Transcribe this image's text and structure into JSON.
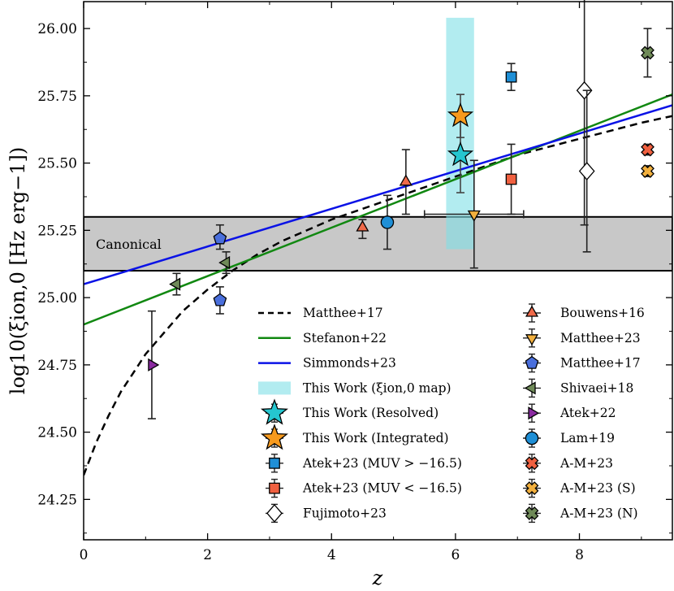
{
  "chart_data": {
    "type": "scatter",
    "xlabel": "z",
    "ylabel": "log10(ξion,0 [Hz erg−1])",
    "xlim": [
      0,
      9.5
    ],
    "ylim": [
      24.1,
      26.1
    ],
    "x_ticks": [
      0,
      2,
      4,
      6,
      8
    ],
    "x_tick_labels": [
      "0",
      "2",
      "4",
      "6",
      "8"
    ],
    "y_ticks": [
      24.25,
      24.5,
      24.75,
      25.0,
      25.25,
      25.5,
      25.75,
      26.0
    ],
    "y_tick_labels": [
      "24.25",
      "24.50",
      "24.75",
      "25.00",
      "25.25",
      "25.50",
      "25.75",
      "26.00"
    ],
    "grid": false,
    "legend_position": "lower-right",
    "canonical_band": {
      "label": "Canonical",
      "y_range": [
        25.1,
        25.3
      ],
      "color": "#c8c8c8"
    },
    "this_work_map_band": {
      "x_range": [
        5.85,
        6.3
      ],
      "y_range": [
        25.18,
        26.04
      ],
      "color": "#7fe0e6"
    },
    "lines": [
      {
        "name": "Matthee+17",
        "style": "dashed",
        "color": "#000000",
        "x": [
          0,
          0.2,
          0.4,
          0.6,
          0.8,
          1.0,
          1.3,
          1.6,
          2.0,
          2.4,
          2.8,
          3.2,
          3.6,
          4.0,
          4.5,
          5.0,
          5.5,
          6.0,
          6.5,
          7.0,
          7.5,
          8.0,
          8.5,
          9.0,
          9.5
        ],
        "y": [
          24.34,
          24.46,
          24.56,
          24.65,
          24.72,
          24.79,
          24.87,
          24.95,
          25.03,
          25.1,
          25.16,
          25.21,
          25.25,
          25.29,
          25.33,
          25.37,
          25.41,
          25.45,
          25.49,
          25.53,
          25.56,
          25.59,
          25.62,
          25.65,
          25.675
        ]
      },
      {
        "name": "Stefanon+22",
        "style": "solid",
        "color": "#118811",
        "x": [
          0,
          9.5
        ],
        "y": [
          24.9,
          25.755
        ]
      },
      {
        "name": "Simmonds+23",
        "style": "solid",
        "color": "#0a12e6",
        "x": [
          0,
          9.5
        ],
        "y": [
          25.05,
          25.715
        ]
      }
    ],
    "series": [
      {
        "name": "This Work (Resolved)",
        "marker": "star",
        "color": "#25c6cf",
        "x": [
          6.08
        ],
        "y": [
          25.53
        ],
        "yerr_low": [
          0.14
        ],
        "yerr_high": [
          0.14
        ],
        "xerr": [
          0
        ]
      },
      {
        "name": "This Work (Integrated)",
        "marker": "star",
        "color": "#f79a1e",
        "x": [
          6.08
        ],
        "y": [
          25.675
        ],
        "yerr_low": [
          0.08
        ],
        "yerr_high": [
          0.08
        ],
        "xerr": [
          0
        ]
      },
      {
        "name": "Atek+23 (MUV > −16.5)",
        "marker": "square",
        "color": "#1f8fd6",
        "x": [
          6.9
        ],
        "y": [
          25.82
        ],
        "yerr_low": [
          0.05
        ],
        "yerr_high": [
          0.05
        ],
        "xerr": [
          0
        ]
      },
      {
        "name": "Atek+23 (MUV < −16.5)",
        "marker": "square",
        "color": "#f06040",
        "x": [
          6.9
        ],
        "y": [
          25.44
        ],
        "yerr_low": [
          0.13
        ],
        "yerr_high": [
          0.13
        ],
        "xerr": [
          0
        ]
      },
      {
        "name": "Fujimoto+23",
        "marker": "diamond",
        "color": "#ffffff",
        "x": [
          8.08,
          8.12
        ],
        "y": [
          25.77,
          25.47
        ],
        "yerr_low": [
          0.5,
          0.3
        ],
        "yerr_high": [
          0.4,
          0.3
        ],
        "xerr": [
          0,
          0
        ]
      },
      {
        "name": "Bouwens+16",
        "marker": "triangle-up",
        "color": "#f06a4a",
        "x": [
          4.5,
          5.2
        ],
        "y": [
          25.26,
          25.43
        ],
        "yerr_low": [
          0.04,
          0.12
        ],
        "yerr_high": [
          0.03,
          0.12
        ],
        "xerr": [
          0,
          0
        ]
      },
      {
        "name": "Matthee+23",
        "marker": "triangle-down",
        "color": "#f2b03e",
        "x": [
          6.3
        ],
        "y": [
          25.31
        ],
        "yerr_low": [
          0.2
        ],
        "yerr_high": [
          0.2
        ],
        "xerr": [
          0.8
        ]
      },
      {
        "name": "Matthee+17",
        "marker": "pentagon",
        "color": "#4a6fdc",
        "x": [
          2.2,
          2.2
        ],
        "y": [
          25.22,
          24.99
        ],
        "yerr_low": [
          0.04,
          0.05
        ],
        "yerr_high": [
          0.05,
          0.05
        ],
        "xerr": [
          0,
          0
        ]
      },
      {
        "name": "Shivaei+18",
        "marker": "triangle-left",
        "color": "#6f8a58",
        "x": [
          1.5,
          2.3
        ],
        "y": [
          25.05,
          25.13
        ],
        "yerr_low": [
          0.04,
          0.04
        ],
        "yerr_high": [
          0.04,
          0.04
        ],
        "xerr": [
          0,
          0
        ]
      },
      {
        "name": "Atek+22",
        "marker": "triangle-right",
        "color": "#8a2aa0",
        "x": [
          1.1
        ],
        "y": [
          24.75
        ],
        "yerr_low": [
          0.2
        ],
        "yerr_high": [
          0.2
        ],
        "xerr": [
          0
        ]
      },
      {
        "name": "Lam+19",
        "marker": "circle",
        "color": "#1f8fd6",
        "x": [
          4.9
        ],
        "y": [
          25.28
        ],
        "yerr_low": [
          0.1
        ],
        "yerr_high": [
          0.1
        ],
        "xerr": [
          0
        ]
      },
      {
        "name": "A-M+23",
        "marker": "x-circle",
        "color": "#f06040",
        "x": [
          9.1
        ],
        "y": [
          25.55
        ],
        "yerr_low": [
          0.02
        ],
        "yerr_high": [
          0.02
        ],
        "xerr": [
          0
        ]
      },
      {
        "name": "A-M+23 (S)",
        "marker": "x-circle",
        "color": "#f2b03e",
        "x": [
          9.1
        ],
        "y": [
          25.47
        ],
        "yerr_low": [
          0.02
        ],
        "yerr_high": [
          0.02
        ],
        "xerr": [
          0
        ]
      },
      {
        "name": "A-M+23 (N)",
        "marker": "x-circle",
        "color": "#6f8a58",
        "x": [
          9.1
        ],
        "y": [
          25.91
        ],
        "yerr_low": [
          0.09
        ],
        "yerr_high": [
          0.09
        ],
        "xerr": [
          0
        ]
      }
    ],
    "legend_left": [
      {
        "label": "Matthee+17",
        "symbol": "dashed-line",
        "color": "#000000"
      },
      {
        "label": "Stefanon+22",
        "symbol": "line",
        "color": "#118811"
      },
      {
        "label": "Simmonds+23",
        "symbol": "line",
        "color": "#0a12e6"
      },
      {
        "label": "This Work (ξion,0 map)",
        "symbol": "patch",
        "color": "#7fe0e6"
      },
      {
        "label": "This Work (Resolved)",
        "symbol": "star",
        "color": "#25c6cf"
      },
      {
        "label": "This Work (Integrated)",
        "symbol": "star",
        "color": "#f79a1e"
      },
      {
        "label": "Atek+23 (MUV > −16.5)",
        "symbol": "square",
        "color": "#1f8fd6"
      },
      {
        "label": "Atek+23 (MUV < −16.5)",
        "symbol": "square",
        "color": "#f06040"
      },
      {
        "label": "Fujimoto+23",
        "symbol": "diamond",
        "color": "#ffffff"
      }
    ],
    "legend_right": [
      {
        "label": "Bouwens+16",
        "symbol": "triangle-up",
        "color": "#f06a4a"
      },
      {
        "label": "Matthee+23",
        "symbol": "triangle-down",
        "color": "#f2b03e"
      },
      {
        "label": "Matthee+17",
        "symbol": "pentagon",
        "color": "#4a6fdc"
      },
      {
        "label": "Shivaei+18",
        "symbol": "triangle-left",
        "color": "#6f8a58"
      },
      {
        "label": "Atek+22",
        "symbol": "triangle-right",
        "color": "#8a2aa0"
      },
      {
        "label": "Lam+19",
        "symbol": "circle",
        "color": "#1f8fd6"
      },
      {
        "label": "A-M+23",
        "symbol": "x-circle",
        "color": "#f06040"
      },
      {
        "label": "A-M+23 (S)",
        "symbol": "x-circle",
        "color": "#f2b03e"
      },
      {
        "label": "A-M+23 (N)",
        "symbol": "x-circle",
        "color": "#6f8a58"
      }
    ]
  }
}
